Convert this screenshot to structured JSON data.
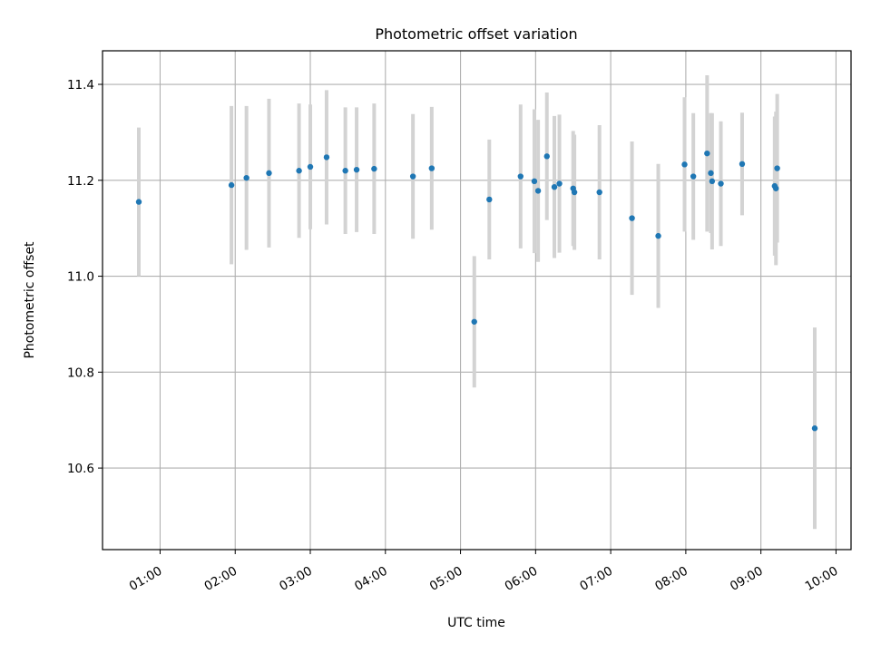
{
  "chart_data": {
    "type": "scatter",
    "title": "Photometric offset variation",
    "xlabel": "UTC time",
    "ylabel": "Photometric offset",
    "grid": true,
    "xlim": [
      "00:14",
      "10:12"
    ],
    "ylim": [
      10.43,
      11.47
    ],
    "x_ticks": [
      "01:00",
      "02:00",
      "03:00",
      "04:00",
      "05:00",
      "06:00",
      "07:00",
      "08:00",
      "09:00",
      "10:00"
    ],
    "y_ticks": [
      "10.6",
      "10.8",
      "11.0",
      "11.2",
      "11.4"
    ],
    "colors": {
      "points": "#1f77b4",
      "errorbars": "#d3d3d3",
      "grid": "#b0b0b0"
    },
    "series": [
      {
        "points": [
          {
            "x": "00:43",
            "y": 11.155,
            "err": 0.155
          },
          {
            "x": "01:57",
            "y": 11.19,
            "err": 0.165
          },
          {
            "x": "02:09",
            "y": 11.205,
            "err": 0.15
          },
          {
            "x": "02:27",
            "y": 11.215,
            "err": 0.155
          },
          {
            "x": "02:51",
            "y": 11.22,
            "err": 0.14
          },
          {
            "x": "03:00",
            "y": 11.228,
            "err": 0.13
          },
          {
            "x": "03:13",
            "y": 11.248,
            "err": 0.14
          },
          {
            "x": "03:28",
            "y": 11.22,
            "err": 0.132
          },
          {
            "x": "03:37",
            "y": 11.222,
            "err": 0.13
          },
          {
            "x": "03:51",
            "y": 11.224,
            "err": 0.136
          },
          {
            "x": "04:22",
            "y": 11.208,
            "err": 0.13
          },
          {
            "x": "04:37",
            "y": 11.225,
            "err": 0.128
          },
          {
            "x": "05:11",
            "y": 10.905,
            "err": 0.137
          },
          {
            "x": "05:23",
            "y": 11.16,
            "err": 0.125
          },
          {
            "x": "05:48",
            "y": 11.208,
            "err": 0.15
          },
          {
            "x": "05:59",
            "y": 11.198,
            "err": 0.15
          },
          {
            "x": "06:02",
            "y": 11.178,
            "err": 0.148
          },
          {
            "x": "06:09",
            "y": 11.25,
            "err": 0.133
          },
          {
            "x": "06:15",
            "y": 11.186,
            "err": 0.148
          },
          {
            "x": "06:19",
            "y": 11.193,
            "err": 0.144
          },
          {
            "x": "06:30",
            "y": 11.183,
            "err": 0.12
          },
          {
            "x": "06:31",
            "y": 11.175,
            "err": 0.12
          },
          {
            "x": "06:51",
            "y": 11.175,
            "err": 0.14
          },
          {
            "x": "07:17",
            "y": 11.121,
            "err": 0.16
          },
          {
            "x": "07:38",
            "y": 11.084,
            "err": 0.15
          },
          {
            "x": "07:59",
            "y": 11.233,
            "err": 0.14
          },
          {
            "x": "08:06",
            "y": 11.208,
            "err": 0.132
          },
          {
            "x": "08:17",
            "y": 11.256,
            "err": 0.163
          },
          {
            "x": "08:20",
            "y": 11.215,
            "err": 0.125
          },
          {
            "x": "08:21",
            "y": 11.198,
            "err": 0.142
          },
          {
            "x": "08:28",
            "y": 11.193,
            "err": 0.13
          },
          {
            "x": "08:45",
            "y": 11.234,
            "err": 0.107
          },
          {
            "x": "09:11",
            "y": 11.188,
            "err": 0.145
          },
          {
            "x": "09:12",
            "y": 11.183,
            "err": 0.16
          },
          {
            "x": "09:13",
            "y": 11.225,
            "err": 0.155
          },
          {
            "x": "09:43",
            "y": 10.683,
            "err": 0.21
          }
        ]
      }
    ]
  }
}
